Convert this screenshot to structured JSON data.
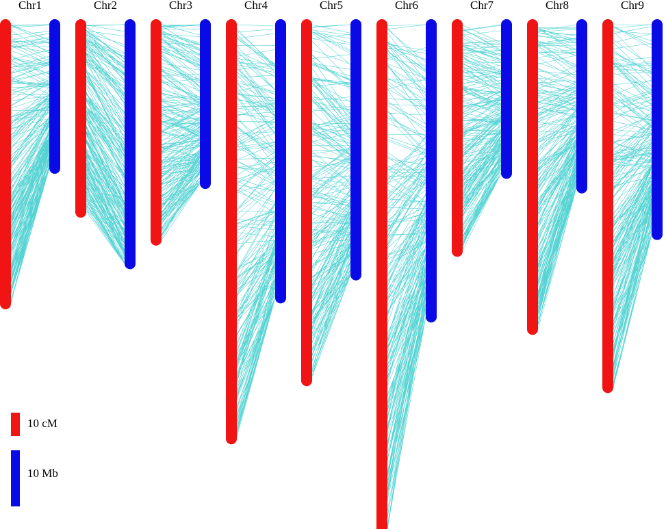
{
  "chromosomes": [
    {
      "label": "Chr1",
      "genetic_length": 120,
      "physical_length": 25.6
    },
    {
      "label": "Chr2",
      "genetic_length": 80.6,
      "physical_length": 42.6
    },
    {
      "label": "Chr3",
      "genetic_length": 92.6,
      "physical_length": 28.3
    },
    {
      "label": "Chr4",
      "genetic_length": 178,
      "physical_length": 48.7
    },
    {
      "label": "Chr5",
      "genetic_length": 153,
      "physical_length": 44.6
    },
    {
      "label": "Chr6",
      "genetic_length": 217,
      "physical_length": 52.1
    },
    {
      "label": "Chr7",
      "genetic_length": 97.4,
      "physical_length": 26.5
    },
    {
      "label": "Chr8",
      "genetic_length": 131,
      "physical_length": 29.1
    },
    {
      "label": "Chr9",
      "genetic_length": 156,
      "physical_length": 37.4
    }
  ],
  "link_color": "#2ec8c8",
  "legend": {
    "genetic": {
      "label": "10 cM",
      "color": "#f01414"
    },
    "physical": {
      "label": "10 Mb",
      "color": "#0a0ae6"
    }
  }
}
